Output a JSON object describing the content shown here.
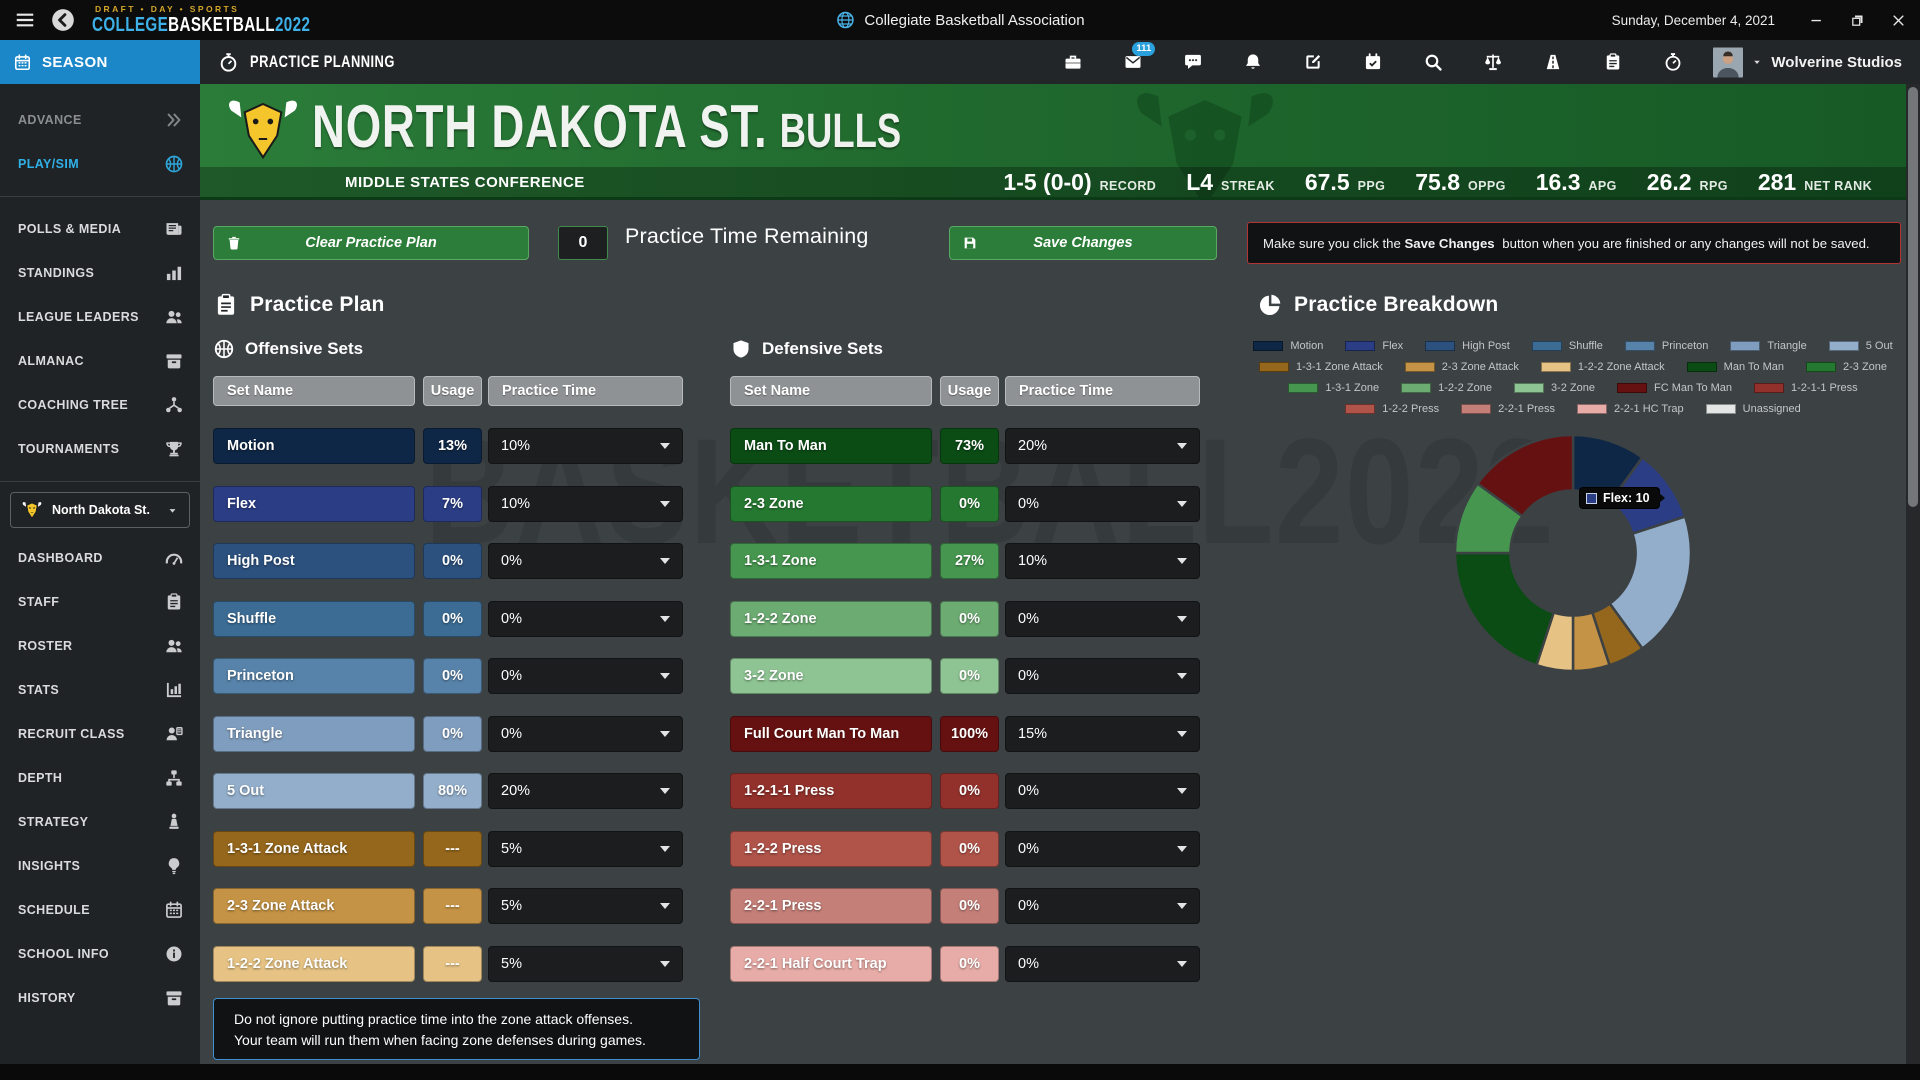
{
  "titlebar": {
    "logo_tagline": "DRAFT • DAY • SPORTS",
    "logo_college": "COLLEGE",
    "logo_basketball": "BASKETBALL",
    "logo_year": "2022",
    "app_title": "Collegiate Basketball Association",
    "date": "Sunday, December 4, 2021"
  },
  "nav": {
    "season_label": "SEASON",
    "page_title": "PRACTICE PLANNING",
    "mail_badge": "111",
    "user_name": "Wolverine Studios",
    "toolbar_icons": [
      "briefcase",
      "mail",
      "chat",
      "bell",
      "edit",
      "calendar-check",
      "search",
      "scales",
      "road",
      "clipboard",
      "stopwatch"
    ]
  },
  "sidebar": {
    "season_items": [
      {
        "label": "ADVANCE",
        "icon": "chevrons-right",
        "state": "disabled"
      },
      {
        "label": "PLAY/SIM",
        "icon": "basketball",
        "state": "active"
      }
    ],
    "league_items": [
      {
        "label": "POLLS & MEDIA",
        "icon": "newspaper"
      },
      {
        "label": "STANDINGS",
        "icon": "bar-chart"
      },
      {
        "label": "LEAGUE LEADERS",
        "icon": "users"
      },
      {
        "label": "ALMANAC",
        "icon": "archive"
      },
      {
        "label": "COACHING TREE",
        "icon": "tree"
      },
      {
        "label": "TOURNAMENTS",
        "icon": "trophy"
      }
    ],
    "team_selector": {
      "label": "North Dakota St.",
      "icon": "bull"
    },
    "team_items": [
      {
        "label": "DASHBOARD",
        "icon": "gauge"
      },
      {
        "label": "STAFF",
        "icon": "clipboard"
      },
      {
        "label": "ROSTER",
        "icon": "users"
      },
      {
        "label": "STATS",
        "icon": "chart-column"
      },
      {
        "label": "RECRUIT CLASS",
        "icon": "user-badge"
      },
      {
        "label": "DEPTH",
        "icon": "sitemap"
      },
      {
        "label": "STRATEGY",
        "icon": "chess"
      },
      {
        "label": "INSIGHTS",
        "icon": "lightbulb"
      },
      {
        "label": "SCHEDULE",
        "icon": "calendar"
      },
      {
        "label": "SCHOOL INFO",
        "icon": "info"
      },
      {
        "label": "HISTORY",
        "icon": "archive"
      }
    ]
  },
  "team_header": {
    "name_primary": "NORTH DAKOTA ST.",
    "name_secondary": "BULLS",
    "conference": "MIDDLE STATES CONFERENCE",
    "stats": [
      {
        "value": "1-5 (0-0)",
        "label": "RECORD"
      },
      {
        "value": "L4",
        "label": "STREAK"
      },
      {
        "value": "67.5",
        "label": "PPG"
      },
      {
        "value": "75.8",
        "label": "OPPG"
      },
      {
        "value": "16.3",
        "label": "APG"
      },
      {
        "value": "26.2",
        "label": "RPG"
      },
      {
        "value": "281",
        "label": "NET RANK"
      }
    ]
  },
  "controls": {
    "clear_button": "Clear Practice Plan",
    "time_value": "0",
    "time_label": "Practice Time Remaining",
    "save_button": "Save Changes",
    "warning_pre": "Make sure you click the",
    "warning_bold": "Save Changes",
    "warning_post": "button when you are finished or any changes will not be saved."
  },
  "practice_plan": {
    "title": "Practice Plan",
    "offense": {
      "title": "Offensive Sets",
      "headers": [
        "Set Name",
        "Usage",
        "Practice Time"
      ],
      "rows": [
        {
          "name": "Motion",
          "usage": "13%",
          "time": "10%",
          "color": "#0f2746"
        },
        {
          "name": "Flex",
          "usage": "7%",
          "time": "10%",
          "color": "#2b3d85"
        },
        {
          "name": "High Post",
          "usage": "0%",
          "time": "0%",
          "color": "#2c517e"
        },
        {
          "name": "Shuffle",
          "usage": "0%",
          "time": "0%",
          "color": "#3c6c94"
        },
        {
          "name": "Princeton",
          "usage": "0%",
          "time": "0%",
          "color": "#5782a9"
        },
        {
          "name": "Triangle",
          "usage": "0%",
          "time": "0%",
          "color": "#7f9dbe"
        },
        {
          "name": "5 Out",
          "usage": "80%",
          "time": "20%",
          "color": "#92aecb"
        },
        {
          "name": "1-3-1 Zone Attack",
          "usage": "---",
          "time": "5%",
          "color": "#95671c"
        },
        {
          "name": "2-3 Zone Attack",
          "usage": "---",
          "time": "5%",
          "color": "#c59345"
        },
        {
          "name": "1-2-2 Zone Attack",
          "usage": "---",
          "time": "5%",
          "color": "#e6c384"
        }
      ]
    },
    "defense": {
      "title": "Defensive Sets",
      "headers": [
        "Set Name",
        "Usage",
        "Practice Time"
      ],
      "rows": [
        {
          "name": "Man To Man",
          "usage": "73%",
          "time": "20%",
          "color": "#0b4c15"
        },
        {
          "name": "2-3 Zone",
          "usage": "0%",
          "time": "0%",
          "color": "#257830"
        },
        {
          "name": "1-3-1 Zone",
          "usage": "27%",
          "time": "10%",
          "color": "#46964f"
        },
        {
          "name": "1-2-2 Zone",
          "usage": "0%",
          "time": "0%",
          "color": "#6cab72"
        },
        {
          "name": "3-2 Zone",
          "usage": "0%",
          "time": "0%",
          "color": "#8ec493"
        },
        {
          "name": "Full Court Man To Man",
          "usage": "100%",
          "time": "15%",
          "color": "#661111"
        },
        {
          "name": "1-2-1-1 Press",
          "usage": "0%",
          "time": "0%",
          "color": "#92312b"
        },
        {
          "name": "1-2-2 Press",
          "usage": "0%",
          "time": "0%",
          "color": "#b0544a"
        },
        {
          "name": "2-2-1 Press",
          "usage": "0%",
          "time": "0%",
          "color": "#c47f78"
        },
        {
          "name": "2-2-1 Half Court Trap",
          "usage": "0%",
          "time": "0%",
          "color": "#e7aca7"
        }
      ]
    },
    "note_line1": "Do not ignore putting practice time into the zone attack offenses.",
    "note_line2": "Your team will run them when facing zone defenses during games."
  },
  "breakdown": {
    "title": "Practice Breakdown",
    "tooltip": {
      "label": "Flex: 10",
      "swatch_color": "#2b3d85"
    }
  },
  "chart_data": {
    "type": "pie",
    "title": "Practice Breakdown",
    "donut_hole_ratio": 0.53,
    "start_angle_deg": 0,
    "direction": "clockwise",
    "slices": [
      {
        "label": "Motion",
        "value": 10,
        "color": "#0f2746"
      },
      {
        "label": "Flex",
        "value": 10,
        "color": "#2b3d85"
      },
      {
        "label": "5 Out",
        "value": 20,
        "color": "#92aecb"
      },
      {
        "label": "1-3-1 Zone Attack",
        "value": 5,
        "color": "#95671c"
      },
      {
        "label": "2-3 Zone Attack",
        "value": 5,
        "color": "#c59345"
      },
      {
        "label": "1-2-2 Zone Attack",
        "value": 5,
        "color": "#e6c384"
      },
      {
        "label": "Man To Man",
        "value": 20,
        "color": "#0b4c15"
      },
      {
        "label": "1-3-1 Zone",
        "value": 10,
        "color": "#46964f"
      },
      {
        "label": "FC Man To Man",
        "value": 15,
        "color": "#661111"
      }
    ],
    "legend_rows": [
      [
        {
          "label": "Motion",
          "color": "#0f2746"
        },
        {
          "label": "Flex",
          "color": "#2b3d85"
        },
        {
          "label": "High Post",
          "color": "#2c517e"
        },
        {
          "label": "Shuffle",
          "color": "#3c6c94"
        },
        {
          "label": "Princeton",
          "color": "#5782a9"
        },
        {
          "label": "Triangle",
          "color": "#7f9dbe"
        },
        {
          "label": "5 Out",
          "color": "#92aecb"
        }
      ],
      [
        {
          "label": "1-3-1 Zone Attack",
          "color": "#95671c"
        },
        {
          "label": "2-3 Zone Attack",
          "color": "#c59345"
        },
        {
          "label": "1-2-2 Zone Attack",
          "color": "#e6c384"
        },
        {
          "label": "Man To Man",
          "color": "#0b4c15"
        },
        {
          "label": "2-3 Zone",
          "color": "#257830"
        }
      ],
      [
        {
          "label": "1-3-1 Zone",
          "color": "#46964f"
        },
        {
          "label": "1-2-2 Zone",
          "color": "#6cab72"
        },
        {
          "label": "3-2 Zone",
          "color": "#8ec493"
        },
        {
          "label": "FC Man To Man",
          "color": "#661111"
        },
        {
          "label": "1-2-1-1 Press",
          "color": "#92312b"
        }
      ],
      [
        {
          "label": "1-2-2 Press",
          "color": "#b0544a"
        },
        {
          "label": "2-2-1 Press",
          "color": "#c47f78"
        },
        {
          "label": "2-2-1 HC Trap",
          "color": "#e7aca7"
        },
        {
          "label": "Unassigned",
          "color": "#e4e6e6"
        }
      ]
    ]
  }
}
